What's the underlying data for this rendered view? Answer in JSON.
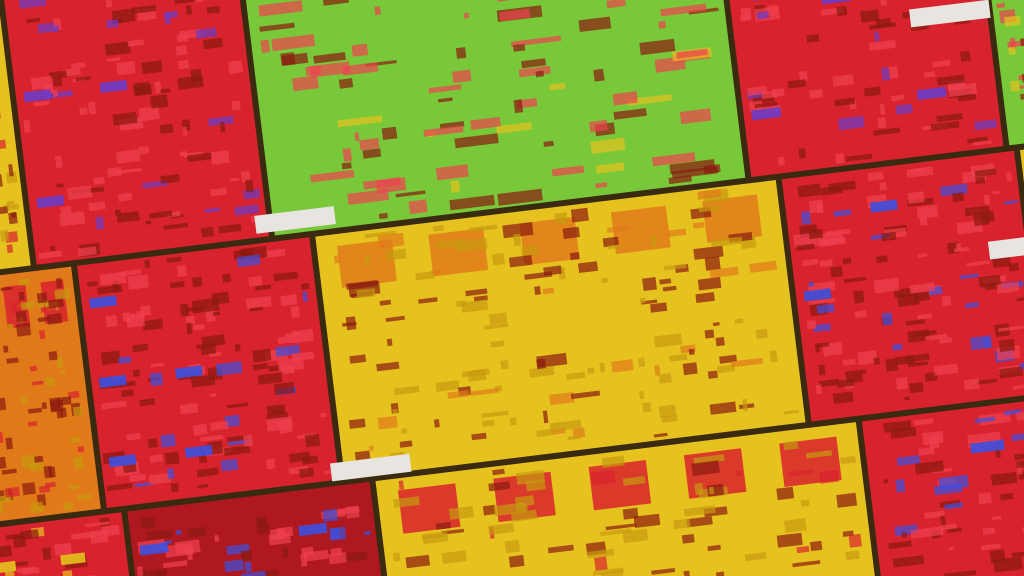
{
  "palette": {
    "red": "#d8222e",
    "deep_red": "#b01820",
    "yellow": "#e6c21e",
    "orange": "#e07a1a",
    "green": "#78c83a",
    "purple": "#6a3cc8",
    "blue": "#3c50e0",
    "grid_line": "#3a2a10",
    "white_pad": "#e8e4e0"
  }
}
